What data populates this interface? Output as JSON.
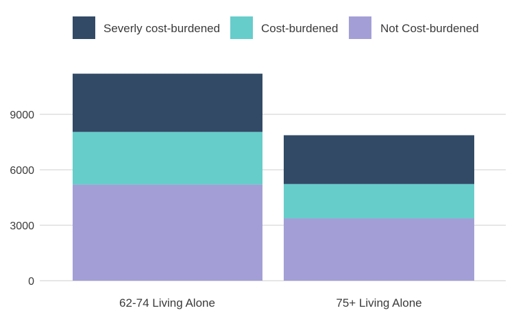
{
  "chart_data": {
    "type": "bar",
    "stacked": true,
    "categories": [
      "62-74 Living Alone",
      "75+ Living Alone"
    ],
    "series": [
      {
        "name": "Not Cost-burdened",
        "values": [
          5200,
          3370
        ],
        "color": "#a39fd6"
      },
      {
        "name": "Cost-burdened",
        "values": [
          2850,
          1860
        ],
        "color": "#66cdcb"
      },
      {
        "name": "Severly cost-burdened",
        "values": [
          3150,
          2640
        ],
        "color": "#324a66"
      }
    ],
    "legend_order": [
      "Severly cost-burdened",
      "Cost-burdened",
      "Not Cost-burdened"
    ],
    "yticks": [
      0,
      3000,
      6000,
      9000
    ],
    "ylim": [
      0,
      12000
    ],
    "grid": true,
    "legend_position": "top",
    "title": "",
    "xlabel": "",
    "ylabel": ""
  }
}
